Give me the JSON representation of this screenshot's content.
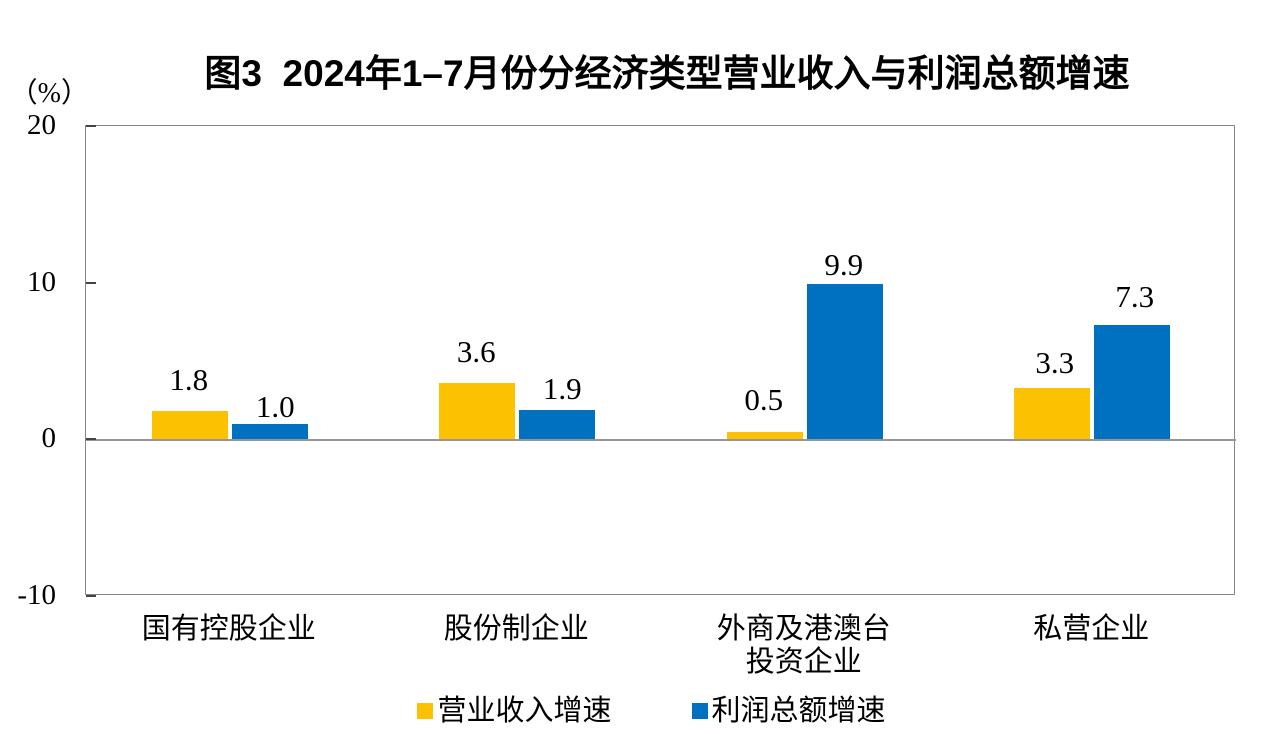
{
  "chart_data": {
    "type": "bar",
    "title": "图3  2024年1–7月份分经济类型营业收入与利润总额增速",
    "unit_label": "（%）",
    "categories": [
      "国有控股企业",
      "股份制企业",
      "外商及港澳台\n投资企业",
      "私营企业"
    ],
    "series": [
      {
        "name": "营业收入增速",
        "color": "#FCC101",
        "values": [
          1.8,
          3.6,
          0.5,
          3.3
        ]
      },
      {
        "name": "利润总额增速",
        "color": "#0070C0",
        "values": [
          1.0,
          1.9,
          9.9,
          7.3
        ]
      }
    ],
    "ylim": [
      -10,
      20
    ],
    "yticks": [
      20,
      10,
      0,
      -10
    ],
    "ylabel": "（%）",
    "xlabel": "",
    "grid": false,
    "legend_position": "bottom",
    "value_label_format": "one-decimal"
  },
  "colors": {
    "plot_border": "#878787",
    "zero_line": "#969696",
    "tick": "#444444",
    "text": "#000000",
    "background": "#ffffff"
  }
}
